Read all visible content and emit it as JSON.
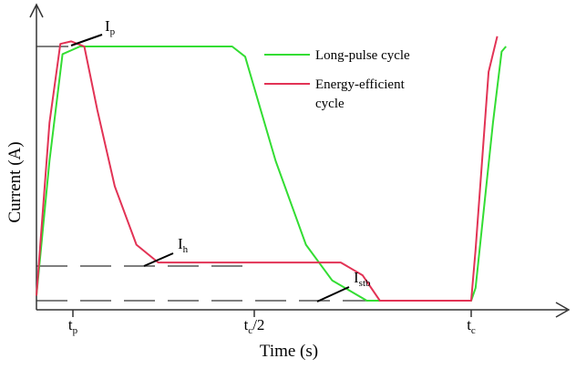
{
  "chart_data": {
    "type": "line",
    "title": "",
    "xlabel": "Time (s)",
    "ylabel": "Current (A)",
    "x_ticks": [
      {
        "key": "tp",
        "base": "t",
        "sub": "p"
      },
      {
        "key": "half",
        "base": "t",
        "sub": "c",
        "suffix": "/2"
      },
      {
        "key": "tc",
        "base": "t",
        "sub": "c"
      }
    ],
    "levels": [
      {
        "key": "Ip",
        "base": "I",
        "sub": "p"
      },
      {
        "key": "Ih",
        "base": "I",
        "sub": "h"
      },
      {
        "key": "Istb",
        "base": "I",
        "sub": "stb"
      }
    ],
    "legend_position": "top-right",
    "series": [
      {
        "name": "Long-pulse cycle",
        "color": "#33dd33",
        "points": [
          [
            0,
            0.02
          ],
          [
            0.03,
            0.55
          ],
          [
            0.06,
            0.97
          ],
          [
            0.1,
            1.0
          ],
          [
            0.45,
            1.0
          ],
          [
            0.48,
            0.96
          ],
          [
            0.55,
            0.55
          ],
          [
            0.62,
            0.22
          ],
          [
            0.68,
            0.08
          ],
          [
            0.76,
            0.0
          ],
          [
            1.0,
            0.0
          ],
          [
            1.01,
            0.05
          ],
          [
            1.05,
            0.7
          ],
          [
            1.07,
            0.98
          ],
          [
            1.08,
            1.0
          ]
        ]
      },
      {
        "name": "Energy-efficient cycle",
        "line1": "Energy-efficient",
        "line2": "cycle",
        "color": "#e23355",
        "points": [
          [
            0,
            0.02
          ],
          [
            0.03,
            0.7
          ],
          [
            0.055,
            1.01
          ],
          [
            0.08,
            1.02
          ],
          [
            0.11,
            1.0
          ],
          [
            0.14,
            0.75
          ],
          [
            0.18,
            0.45
          ],
          [
            0.23,
            0.22
          ],
          [
            0.28,
            0.15
          ],
          [
            0.3,
            0.15
          ],
          [
            0.7,
            0.15
          ],
          [
            0.75,
            0.1
          ],
          [
            0.79,
            0.0
          ],
          [
            1.0,
            0.0
          ],
          [
            1.01,
            0.2
          ],
          [
            1.04,
            0.9
          ],
          [
            1.06,
            1.04
          ]
        ]
      }
    ]
  },
  "icons": {
    "x_axis_arrow": "arrow-right-icon",
    "y_axis_arrow": "arrow-up-icon"
  }
}
